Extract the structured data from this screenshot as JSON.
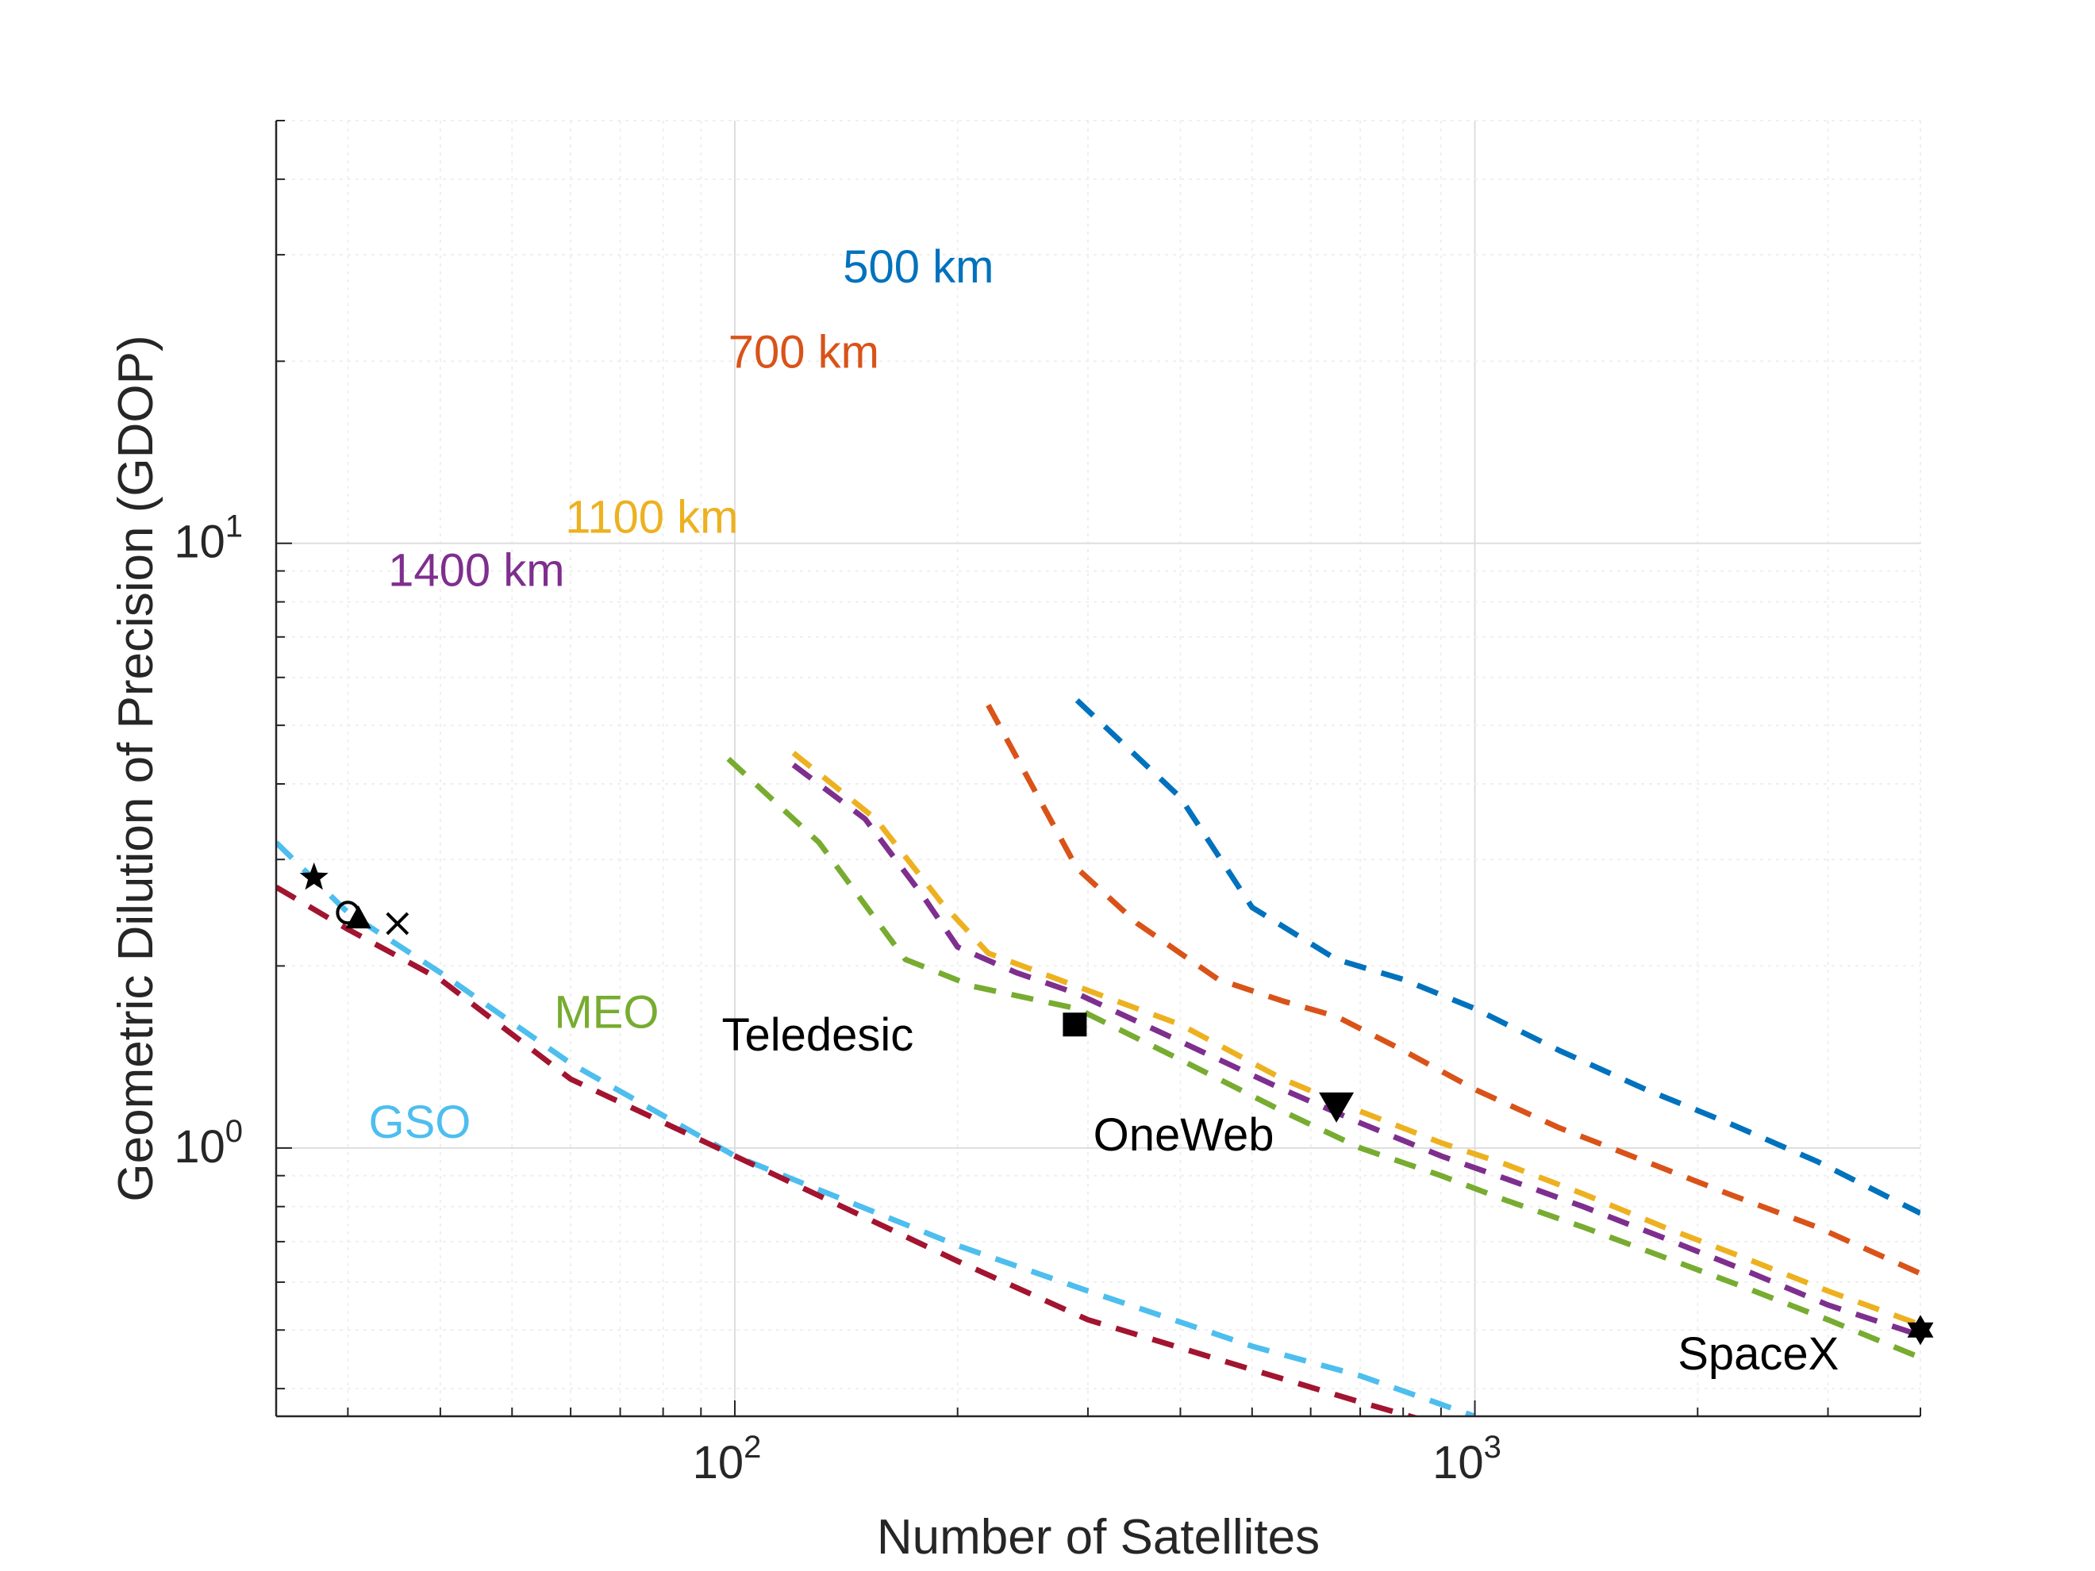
{
  "chart_data": {
    "type": "line",
    "title": "",
    "xlabel": "Number of Satellites",
    "ylabel": "Geometric Dilution of Precision (GDOP)",
    "xscale": "log",
    "yscale": "log",
    "xlim": [
      24,
      4000
    ],
    "ylim": [
      0.36,
      50
    ],
    "grid": true,
    "x_ticks": [
      {
        "value": 100,
        "base": "10",
        "exp": "2"
      },
      {
        "value": 1000,
        "base": "10",
        "exp": "3"
      }
    ],
    "y_ticks": [
      {
        "value": 1,
        "base": "10",
        "exp": "0"
      },
      {
        "value": 10,
        "base": "10",
        "exp": "1"
      }
    ],
    "series": [
      {
        "name": "500 km",
        "color": "#0072BD",
        "dash": true,
        "x": [
          290,
          400,
          500,
          650,
          800,
          1000,
          1300,
          1700,
          2200,
          2900,
          4000
        ],
        "y": [
          5.5,
          3.8,
          2.5,
          2.05,
          1.9,
          1.7,
          1.45,
          1.25,
          1.1,
          0.95,
          0.78
        ]
      },
      {
        "name": "700 km",
        "color": "#D95319",
        "dash": true,
        "x": [
          220,
          290,
          350,
          450,
          550,
          650,
          800,
          1000,
          1300,
          1700,
          2200,
          2900,
          4000
        ],
        "y": [
          5.4,
          2.9,
          2.35,
          1.9,
          1.75,
          1.65,
          1.45,
          1.25,
          1.08,
          0.95,
          0.84,
          0.74,
          0.62
        ]
      },
      {
        "name": "1100 km",
        "color": "#EDB120",
        "dash": true,
        "x": [
          120,
          155,
          190,
          220,
          290,
          400,
          550,
          700,
          900,
          1100,
          1400,
          1800,
          2300,
          3000,
          4000
        ],
        "y": [
          4.5,
          3.5,
          2.55,
          2.1,
          1.85,
          1.6,
          1.3,
          1.15,
          1.02,
          0.94,
          0.84,
          0.74,
          0.66,
          0.58,
          0.51
        ]
      },
      {
        "name": "1400 km",
        "color": "#7E2F8E",
        "dash": true,
        "x": [
          120,
          150,
          180,
          200,
          240,
          290,
          400,
          550,
          700,
          900,
          1100,
          1400,
          1800,
          2300,
          3000,
          4000
        ],
        "y": [
          4.3,
          3.5,
          2.6,
          2.15,
          1.95,
          1.8,
          1.5,
          1.25,
          1.1,
          0.97,
          0.89,
          0.8,
          0.71,
          0.63,
          0.55,
          0.49
        ]
      },
      {
        "name": "MEO",
        "color": "#77AC30",
        "dash": true,
        "x": [
          98,
          130,
          170,
          210,
          290,
          400,
          550,
          700,
          900,
          1100,
          1400,
          1800,
          2300,
          3000,
          4000
        ],
        "y": [
          4.4,
          3.2,
          2.05,
          1.85,
          1.7,
          1.4,
          1.15,
          1.0,
          0.9,
          0.82,
          0.74,
          0.66,
          0.59,
          0.52,
          0.45
        ]
      },
      {
        "name": "GSO",
        "color": "#4DBEEE",
        "dash": true,
        "x": [
          24,
          30,
          40,
          60,
          100,
          200,
          300,
          500,
          700,
          1000
        ],
        "y": [
          3.2,
          2.45,
          1.95,
          1.38,
          0.97,
          0.69,
          0.58,
          0.47,
          0.42,
          0.36
        ]
      },
      {
        "name": "",
        "color": "#A2142F",
        "dash": true,
        "x": [
          24,
          30,
          40,
          60,
          100,
          200,
          300,
          500,
          700,
          850
        ],
        "y": [
          2.7,
          2.3,
          1.9,
          1.3,
          0.97,
          0.65,
          0.52,
          0.43,
          0.38,
          0.355
        ]
      }
    ],
    "markers": [
      {
        "shape": "star",
        "x": 27,
        "y": 2.8
      },
      {
        "shape": "circle",
        "x": 30,
        "y": 2.45
      },
      {
        "shape": "triangle-up",
        "x": 31,
        "y": 2.4
      },
      {
        "shape": "x",
        "x": 35,
        "y": 2.35
      },
      {
        "shape": "square",
        "x": 288,
        "y": 1.6
      },
      {
        "shape": "triangle-down",
        "x": 650,
        "y": 1.17
      },
      {
        "shape": "hexagram",
        "x": 4000,
        "y": 0.5
      }
    ],
    "annotations": [
      {
        "text": "500 km",
        "color": "#0072BD",
        "x": 140,
        "y": 27
      },
      {
        "text": "700 km",
        "color": "#D95319",
        "x": 98,
        "y": 19.5
      },
      {
        "text": "1100 km",
        "color": "#EDB120",
        "x": 59,
        "y": 10.4
      },
      {
        "text": "1400 km",
        "color": "#7E2F8E",
        "x": 34,
        "y": 8.5
      },
      {
        "text": "MEO",
        "color": "#77AC30",
        "x": 57,
        "y": 1.58
      },
      {
        "text": "GSO",
        "color": "#4DBEEE",
        "x": 32,
        "y": 1.04
      },
      {
        "text": "Teledesic",
        "color": "#000000",
        "x": 96,
        "y": 1.45
      },
      {
        "text": "OneWeb",
        "color": "#000000",
        "x": 305,
        "y": 0.99
      },
      {
        "text": "SpaceX",
        "color": "#000000",
        "x": 1880,
        "y": 0.43
      }
    ]
  }
}
